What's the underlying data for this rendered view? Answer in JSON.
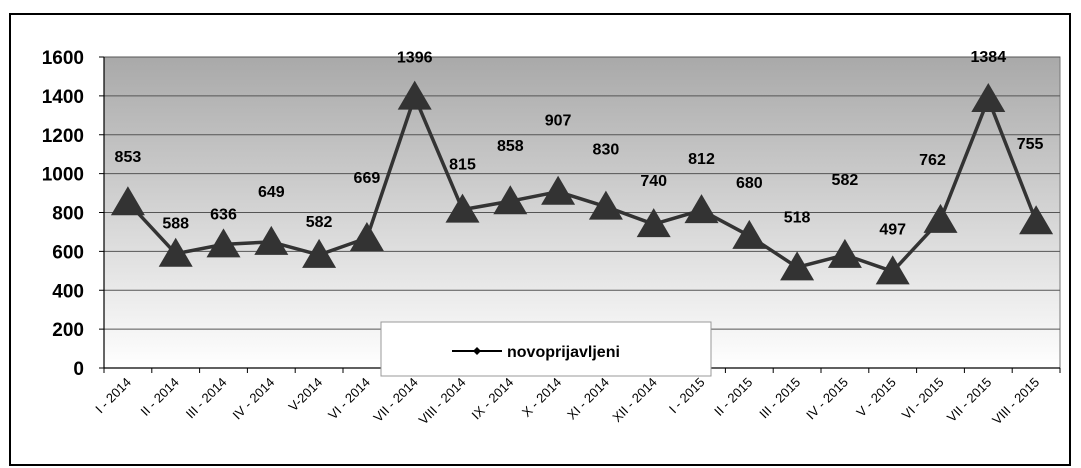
{
  "chart_data": {
    "type": "line",
    "title": "",
    "xlabel": "",
    "ylabel": "",
    "ylim": [
      0,
      1600
    ],
    "yticks": [
      0,
      200,
      400,
      600,
      800,
      1000,
      1200,
      1400,
      1600
    ],
    "grid": true,
    "legend_position": "bottom-center",
    "background": "gradient gray-to-white",
    "categories": [
      "I - 2014",
      "II - 2014",
      "III - 2014",
      "IV - 2014",
      "V-2014",
      "VI - 2014",
      "VII - 2014",
      "VIII - 2014",
      "IX - 2014",
      "X - 2014",
      "XI - 2014",
      "XII - 2014",
      "I - 2015",
      "II - 2015",
      "III - 2015",
      "IV - 2015",
      "V - 2015",
      "VI - 2015",
      "VII - 2015",
      "VIII - 2015"
    ],
    "series": [
      {
        "name": "novoprijavljeni",
        "color": "#333333",
        "marker": "triangle",
        "values": [
          853,
          588,
          636,
          649,
          582,
          669,
          1396,
          815,
          858,
          907,
          830,
          740,
          812,
          680,
          518,
          582,
          497,
          762,
          1384,
          755
        ],
        "labels": [
          "853",
          "588",
          "636",
          "649",
          "582",
          "669",
          "1396",
          "815",
          "858",
          "907",
          "830",
          "740",
          "812",
          "680",
          "518",
          "582",
          "497",
          "762",
          "1384",
          "755"
        ]
      }
    ]
  }
}
